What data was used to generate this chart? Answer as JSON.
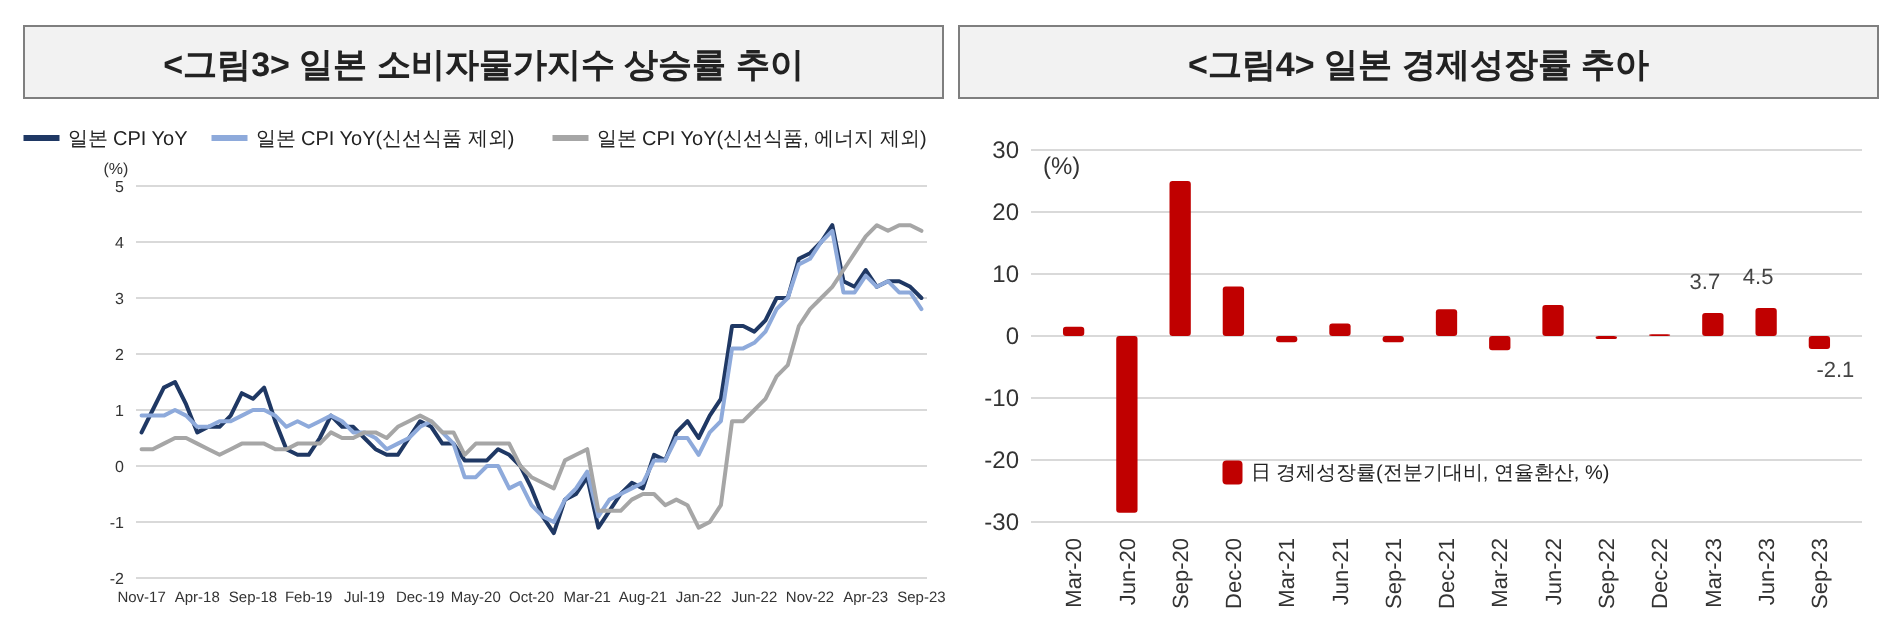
{
  "chart_data": [
    {
      "type": "line",
      "title": "<그림3> 일본 소비자물가지수 상승률 추이",
      "ylabel": "(%)",
      "categories": [
        "Nov-17",
        null,
        null,
        null,
        null,
        "Apr-18",
        null,
        null,
        null,
        null,
        "Sep-18",
        null,
        null,
        null,
        null,
        "Feb-19",
        null,
        null,
        null,
        null,
        "Jul-19",
        null,
        null,
        null,
        null,
        "Dec-19",
        null,
        null,
        null,
        null,
        "May-20",
        null,
        null,
        null,
        null,
        "Oct-20",
        null,
        null,
        null,
        null,
        "Mar-21",
        null,
        null,
        null,
        null,
        "Aug-21",
        null,
        null,
        null,
        null,
        "Jan-22",
        null,
        null,
        null,
        null,
        "Jun-22",
        null,
        null,
        null,
        null,
        "Nov-22",
        null,
        null,
        null,
        null,
        "Apr-23",
        null,
        null,
        null,
        null,
        "Sep-23"
      ],
      "series": [
        {
          "name": "일본 CPI YoY",
          "color": "#1f3864",
          "values": [
            0.6,
            1.0,
            1.4,
            1.5,
            1.1,
            0.6,
            0.7,
            0.7,
            0.9,
            1.3,
            1.2,
            1.4,
            0.8,
            0.3,
            0.2,
            0.2,
            0.5,
            0.9,
            0.7,
            0.7,
            0.5,
            0.3,
            0.2,
            0.2,
            0.5,
            0.8,
            0.7,
            0.4,
            0.4,
            0.1,
            0.1,
            0.1,
            0.3,
            0.2,
            0.0,
            -0.4,
            -0.9,
            -1.2,
            -0.6,
            -0.5,
            -0.2,
            -1.1,
            -0.8,
            -0.5,
            -0.3,
            -0.4,
            0.2,
            0.1,
            0.6,
            0.8,
            0.5,
            0.9,
            1.2,
            2.5,
            2.5,
            2.4,
            2.6,
            3.0,
            3.0,
            3.7,
            3.8,
            4.0,
            4.3,
            3.3,
            3.2,
            3.5,
            3.2,
            3.3,
            3.3,
            3.2,
            3.0
          ]
        },
        {
          "name": "일본 CPI YoY(신선식품 제외)",
          "color": "#8eaadb",
          "values": [
            0.9,
            0.9,
            0.9,
            1.0,
            0.9,
            0.7,
            0.7,
            0.8,
            0.8,
            0.9,
            1.0,
            1.0,
            0.9,
            0.7,
            0.8,
            0.7,
            0.8,
            0.9,
            0.8,
            0.6,
            0.6,
            0.5,
            0.3,
            0.4,
            0.5,
            0.7,
            0.8,
            0.6,
            0.4,
            -0.2,
            -0.2,
            0.0,
            0.0,
            -0.4,
            -0.3,
            -0.7,
            -0.9,
            -1.0,
            -0.6,
            -0.4,
            -0.1,
            -0.9,
            -0.6,
            -0.5,
            -0.4,
            -0.3,
            0.1,
            0.1,
            0.5,
            0.5,
            0.2,
            0.6,
            0.8,
            2.1,
            2.1,
            2.2,
            2.4,
            2.8,
            3.0,
            3.6,
            3.7,
            4.0,
            4.2,
            3.1,
            3.1,
            3.4,
            3.2,
            3.3,
            3.1,
            3.1,
            2.8
          ]
        },
        {
          "name": "일본 CPI YoY(신선식품, 에너지 제외)",
          "color": "#a6a6a6",
          "values": [
            0.3,
            0.3,
            0.4,
            0.5,
            0.5,
            0.4,
            0.3,
            0.2,
            0.3,
            0.4,
            0.4,
            0.4,
            0.3,
            0.3,
            0.4,
            0.4,
            0.4,
            0.6,
            0.5,
            0.5,
            0.6,
            0.6,
            0.5,
            0.7,
            0.8,
            0.9,
            0.8,
            0.6,
            0.6,
            0.2,
            0.4,
            0.4,
            0.4,
            0.4,
            0.0,
            -0.2,
            -0.3,
            -0.4,
            0.1,
            0.2,
            0.3,
            -0.8,
            -0.8,
            -0.8,
            -0.6,
            -0.5,
            -0.5,
            -0.7,
            -0.6,
            -0.7,
            -1.1,
            -1.0,
            -0.7,
            0.8,
            0.8,
            1.0,
            1.2,
            1.6,
            1.8,
            2.5,
            2.8,
            3.0,
            3.2,
            3.5,
            3.8,
            4.1,
            4.3,
            4.2,
            4.3,
            4.3,
            4.2
          ]
        }
      ],
      "ylim": [
        -2,
        5
      ],
      "yticks": [
        -2,
        -1,
        0,
        1,
        2,
        3,
        4,
        5
      ],
      "grid": "y",
      "legend": "top"
    },
    {
      "type": "bar",
      "title": "<그림4> 일본 경제성장률 추아",
      "ylabel": "(%)",
      "categories": [
        "Mar-20",
        "Jun-20",
        "Sep-20",
        "Dec-20",
        "Mar-21",
        "Jun-21",
        "Sep-21",
        "Dec-21",
        "Mar-22",
        "Jun-22",
        "Sep-22",
        "Dec-22",
        "Mar-23",
        "Jun-23",
        "Sep-23"
      ],
      "series": [
        {
          "name": "日 경제성장률(전분기대비, 연율환산, %)",
          "color": "#c00000",
          "values": [
            1.5,
            -28.5,
            25,
            8,
            -1,
            2,
            -1,
            4.3,
            -2.3,
            5,
            -0.5,
            0.3,
            3.7,
            4.5,
            -2.1
          ],
          "value_labels": [
            null,
            null,
            null,
            null,
            null,
            null,
            null,
            null,
            null,
            null,
            null,
            null,
            "3.7",
            "4.5",
            "-2.1"
          ]
        }
      ],
      "ylim": [
        -30,
        30
      ],
      "yticks": [
        -30,
        -20,
        -10,
        0,
        10,
        20,
        30
      ],
      "grid": "y",
      "legend": "bottom"
    }
  ]
}
